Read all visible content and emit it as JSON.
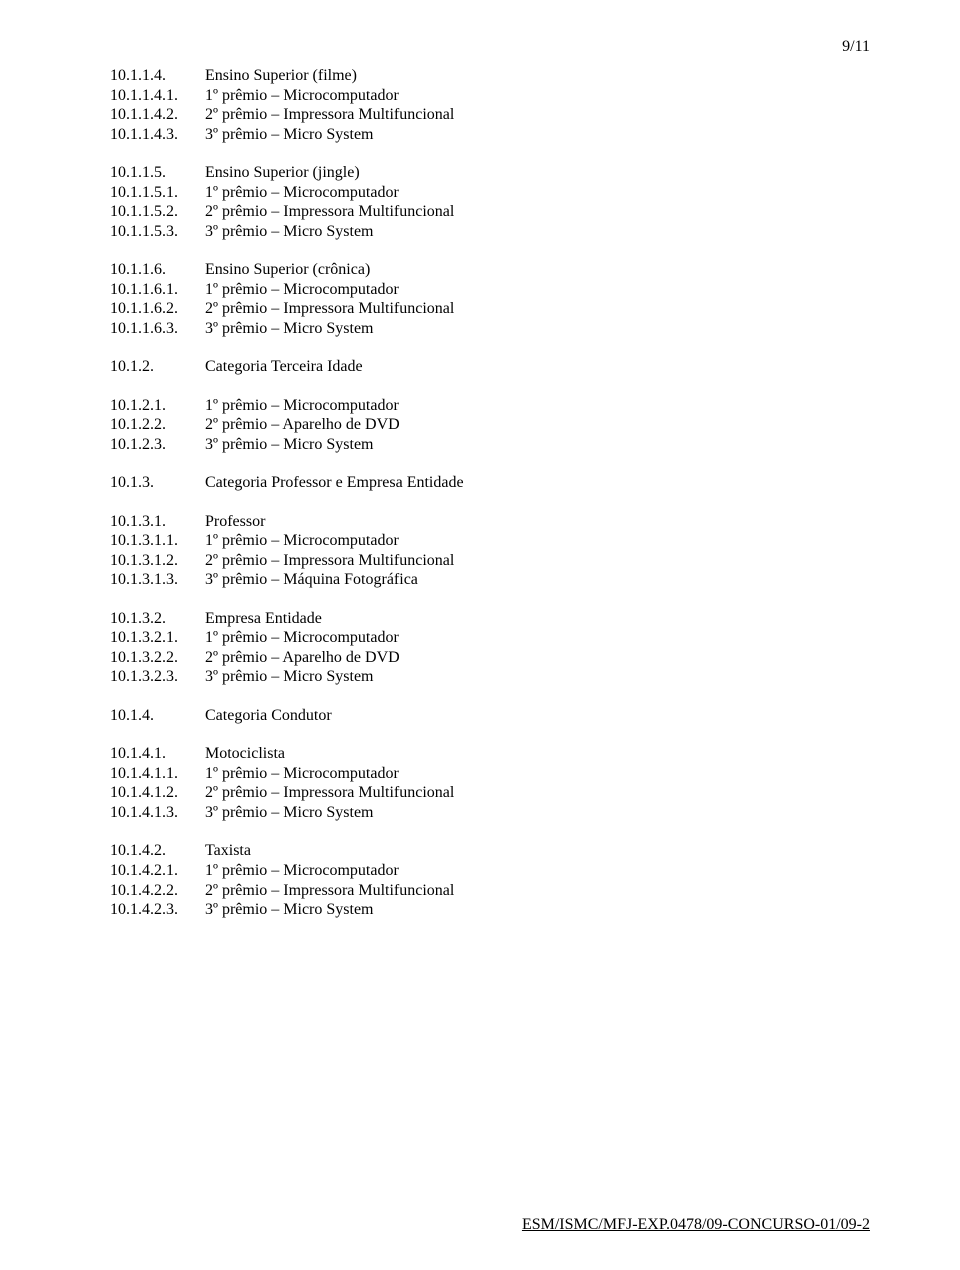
{
  "page_number": "9/11",
  "footer": "ESM/ISMC/MFJ-EXP.0478/09-CONCURSO-01/09-2",
  "groups": [
    [
      {
        "num": "10.1.1.4.",
        "text": "Ensino Superior (filme)"
      },
      {
        "num": "10.1.1.4.1.",
        "text": "1º prêmio – Microcomputador"
      },
      {
        "num": "10.1.1.4.2.",
        "text": "2º prêmio – Impressora Multifuncional"
      },
      {
        "num": "10.1.1.4.3.",
        "text": "3º prêmio – Micro System"
      }
    ],
    [
      {
        "num": "10.1.1.5.",
        "text": "Ensino Superior (jingle)"
      },
      {
        "num": "10.1.1.5.1.",
        "text": "1º prêmio – Microcomputador"
      },
      {
        "num": "10.1.1.5.2.",
        "text": "2º prêmio – Impressora Multifuncional"
      },
      {
        "num": "10.1.1.5.3.",
        "text": "3º prêmio – Micro System"
      }
    ],
    [
      {
        "num": "10.1.1.6.",
        "text": "Ensino Superior (crônica)"
      },
      {
        "num": "10.1.1.6.1.",
        "text": "1º prêmio – Microcomputador"
      },
      {
        "num": "10.1.1.6.2.",
        "text": "2º prêmio – Impressora Multifuncional"
      },
      {
        "num": "10.1.1.6.3.",
        "text": "3º prêmio – Micro System"
      }
    ],
    [
      {
        "num": "10.1.2.",
        "text": "Categoria Terceira Idade"
      }
    ],
    [
      {
        "num": "10.1.2.1.",
        "text": "1º prêmio – Microcomputador"
      },
      {
        "num": "10.1.2.2.",
        "text": "2º prêmio – Aparelho de DVD"
      },
      {
        "num": "10.1.2.3.",
        "text": "3º prêmio – Micro System"
      }
    ],
    [
      {
        "num": "10.1.3.",
        "text": "Categoria Professor e Empresa Entidade"
      }
    ],
    [
      {
        "num": "10.1.3.1.",
        "text": "Professor"
      },
      {
        "num": "10.1.3.1.1.",
        "text": "1º prêmio – Microcomputador"
      },
      {
        "num": "10.1.3.1.2.",
        "text": "2º prêmio – Impressora Multifuncional"
      },
      {
        "num": "10.1.3.1.3.",
        "text": "3º prêmio – Máquina Fotográfica"
      }
    ],
    [
      {
        "num": "10.1.3.2.",
        "text": "Empresa Entidade"
      },
      {
        "num": "10.1.3.2.1.",
        "text": "1º prêmio – Microcomputador"
      },
      {
        "num": "10.1.3.2.2.",
        "text": "2º prêmio – Aparelho de DVD"
      },
      {
        "num": "10.1.3.2.3.",
        "text": "3º prêmio – Micro System"
      }
    ],
    [
      {
        "num": "10.1.4.",
        "text": "Categoria Condutor"
      }
    ],
    [
      {
        "num": "10.1.4.1.",
        "text": "Motociclista"
      },
      {
        "num": "10.1.4.1.1.",
        "text": "1º prêmio – Microcomputador"
      },
      {
        "num": "10.1.4.1.2.",
        "text": "2º prêmio – Impressora Multifuncional"
      },
      {
        "num": "10.1.4.1.3.",
        "text": "3º prêmio – Micro System"
      }
    ],
    [
      {
        "num": "10.1.4.2.",
        "text": "Taxista"
      },
      {
        "num": "10.1.4.2.1.",
        "text": "1º prêmio – Microcomputador"
      },
      {
        "num": "10.1.4.2.2.",
        "text": "2º prêmio – Impressora Multifuncional"
      },
      {
        "num": "10.1.4.2.3.",
        "text": "3º prêmio – Micro System"
      }
    ]
  ]
}
